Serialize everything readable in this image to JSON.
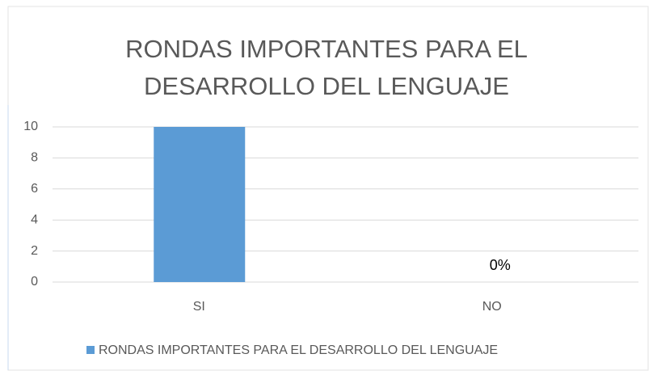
{
  "chart_data": {
    "type": "bar",
    "title": "RONDAS IMPORTANTES PARA EL DESARROLLO DEL LENGUAJE",
    "categories": [
      "SI",
      "NO"
    ],
    "series": [
      {
        "name": "RONDAS IMPORTANTES PARA EL DESARROLLO DEL LENGUAJE",
        "color": "#5b9bd5",
        "values": [
          10,
          0
        ],
        "value_labels": [
          null,
          "0%"
        ]
      }
    ],
    "ylim": [
      0,
      10
    ],
    "yticks": [
      0,
      2,
      4,
      6,
      8,
      10
    ],
    "grid": true,
    "legend": "bottom"
  }
}
